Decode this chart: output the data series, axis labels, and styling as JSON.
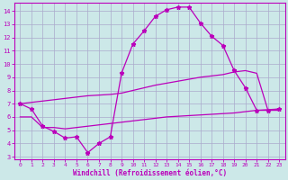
{
  "xlabel": "Windchill (Refroidissement éolien,°C)",
  "bg_color": "#cce8e8",
  "grid_color": "#aaaacc",
  "line_color": "#bb00bb",
  "xlim": [
    -0.5,
    23.5
  ],
  "ylim": [
    2.8,
    14.6
  ],
  "yticks": [
    3,
    4,
    5,
    6,
    7,
    8,
    9,
    10,
    11,
    12,
    13,
    14
  ],
  "xticks": [
    0,
    1,
    2,
    3,
    4,
    5,
    6,
    7,
    8,
    9,
    10,
    11,
    12,
    13,
    14,
    15,
    16,
    17,
    18,
    19,
    20,
    21,
    22,
    23
  ],
  "main_x": [
    0,
    1,
    2,
    3,
    4,
    5,
    6,
    7,
    8,
    9,
    10,
    11,
    12,
    13,
    14,
    15,
    16,
    17,
    18,
    19,
    20,
    21,
    22,
    23
  ],
  "main_y": [
    7.0,
    6.6,
    5.3,
    4.9,
    4.4,
    4.5,
    3.3,
    4.0,
    4.5,
    9.3,
    11.5,
    12.5,
    13.6,
    14.1,
    14.3,
    14.3,
    13.1,
    12.1,
    11.4,
    9.5,
    8.2,
    6.5,
    6.5,
    6.6
  ],
  "upper_x": [
    0,
    1,
    2,
    3,
    4,
    5,
    6,
    7,
    8,
    9,
    10,
    11,
    12,
    13,
    14,
    15,
    16,
    17,
    18,
    19,
    20,
    21,
    22,
    23
  ],
  "upper_y": [
    7.0,
    7.1,
    7.2,
    7.3,
    7.4,
    7.5,
    7.6,
    7.65,
    7.7,
    7.8,
    8.0,
    8.2,
    8.4,
    8.55,
    8.7,
    8.85,
    9.0,
    9.1,
    9.2,
    9.4,
    9.5,
    9.3,
    6.5,
    6.5
  ],
  "lower_x": [
    0,
    1,
    2,
    3,
    4,
    5,
    6,
    7,
    8,
    9,
    10,
    11,
    12,
    13,
    14,
    15,
    16,
    17,
    18,
    19,
    20,
    21,
    22,
    23
  ],
  "lower_y": [
    6.0,
    6.0,
    5.2,
    5.2,
    5.1,
    5.2,
    5.3,
    5.4,
    5.5,
    5.6,
    5.7,
    5.8,
    5.9,
    6.0,
    6.05,
    6.1,
    6.15,
    6.2,
    6.25,
    6.3,
    6.4,
    6.5,
    6.55,
    6.6
  ]
}
